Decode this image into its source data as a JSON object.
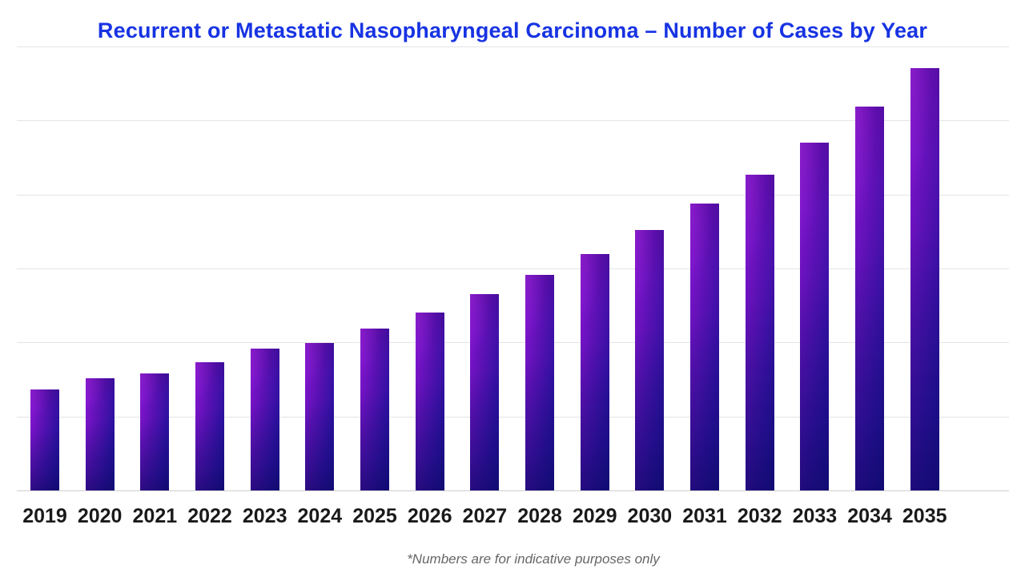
{
  "header": {
    "title": "Recurrent or Metastatic Nasopharyngeal Carcinoma – Number of Cases by Year"
  },
  "footnote": {
    "text": "*Numbers are for indicative purposes only"
  },
  "colors": {
    "bg": "#ffffff",
    "title": "#1733e3",
    "bar-a": "#8a15d2",
    "bar-b": "#1c1190",
    "grid": "#e4e4e4",
    "axis": "#cfcfcf",
    "label": "#1a1a1a",
    "note": "#666666"
  },
  "chart_data": {
    "type": "bar",
    "title": "Recurrent or Metastatic Nasopharyngeal Carcinoma – Number of Cases by Year",
    "categories": [
      "2019",
      "2020",
      "2021",
      "2022",
      "2023",
      "2024",
      "2025",
      "2026",
      "2027",
      "2028",
      "2029",
      "2030",
      "2031",
      "2032",
      "2033",
      "2034",
      "2035"
    ],
    "values": [
      137,
      152,
      158,
      173,
      192,
      199,
      219,
      240,
      265,
      291,
      320,
      352,
      388,
      427,
      470,
      519,
      571
    ],
    "xlabel": "",
    "ylabel": "",
    "ylim": [
      0,
      600
    ],
    "gridline_interval": 100,
    "grid": "horizontal",
    "legend_position": "none",
    "y_axis_labels_visible": false,
    "annotation": "*Numbers are for indicative purposes only"
  }
}
